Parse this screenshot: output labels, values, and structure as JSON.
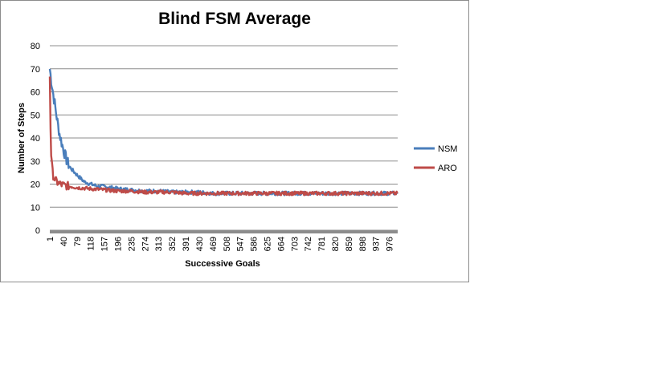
{
  "chart_data": {
    "type": "line",
    "title": "Blind FSM Average",
    "xlabel": "Successive  Goals",
    "ylabel": "Number of Steps",
    "ylim": [
      0,
      80
    ],
    "yticks": [
      0,
      10,
      20,
      30,
      40,
      50,
      60,
      70,
      80
    ],
    "xlim": [
      1,
      1000
    ],
    "xtick_labels": [
      "1",
      "40",
      "79",
      "118",
      "157",
      "196",
      "235",
      "274",
      "313",
      "352",
      "391",
      "430",
      "469",
      "508",
      "547",
      "586",
      "625",
      "664",
      "703",
      "742",
      "781",
      "820",
      "859",
      "898",
      "937",
      "976"
    ],
    "grid": true,
    "legend_position": "right",
    "series": [
      {
        "name": "NSM",
        "color": "#4a7ebb",
        "x": [
          1,
          5,
          10,
          15,
          20,
          25,
          30,
          40,
          50,
          60,
          79,
          100,
          118,
          140,
          157,
          196,
          235,
          274,
          313,
          352,
          391,
          430,
          469,
          508,
          547,
          586,
          625,
          664,
          703,
          742,
          781,
          820,
          859,
          898,
          937,
          976,
          1000
        ],
        "y": [
          70,
          65,
          60,
          55,
          50,
          45,
          41,
          35,
          30,
          27,
          24,
          21,
          20,
          19,
          19,
          18,
          17.5,
          17,
          17,
          16.5,
          16.5,
          16.5,
          16,
          16,
          16,
          16,
          16,
          16,
          16,
          16,
          16,
          16,
          16,
          16,
          16,
          16,
          16
        ]
      },
      {
        "name": "ARO",
        "color": "#be4b48",
        "x": [
          1,
          3,
          5,
          8,
          12,
          16,
          20,
          30,
          40,
          60,
          79,
          118,
          157,
          196,
          235,
          274,
          313,
          352,
          391,
          430,
          469,
          508,
          547,
          586,
          625,
          664,
          703,
          742,
          781,
          820,
          859,
          898,
          937,
          976,
          1000
        ],
        "y": [
          67,
          45,
          33,
          26,
          23,
          22,
          21,
          20,
          19.5,
          19,
          18.5,
          18,
          17.5,
          17,
          17,
          16.5,
          16.5,
          16.5,
          16,
          16,
          16,
          16,
          16,
          16,
          16,
          16,
          16,
          16,
          16,
          16,
          16,
          16,
          16,
          16,
          16
        ]
      }
    ]
  }
}
